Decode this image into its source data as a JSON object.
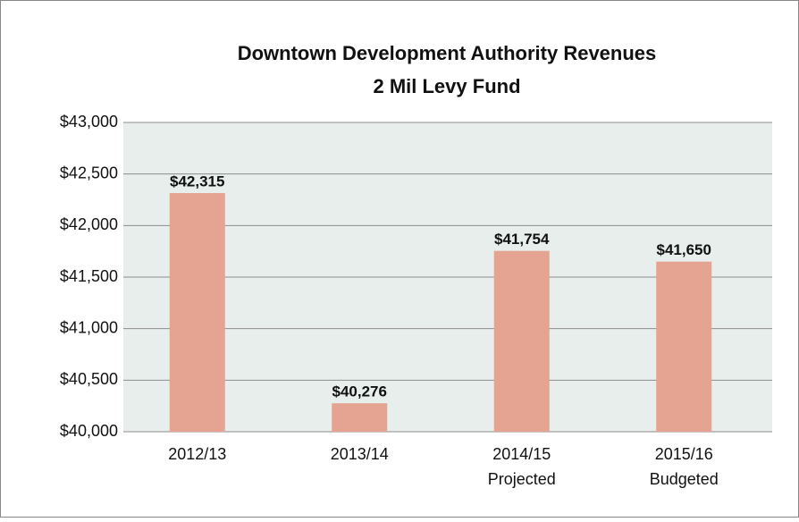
{
  "chart_data": {
    "type": "bar",
    "title": "Downtown Development Authority Revenues",
    "subtitle": "2 Mil Levy Fund",
    "categories": [
      [
        "2012/13"
      ],
      [
        "2013/14"
      ],
      [
        "2014/15",
        "Projected"
      ],
      [
        "2015/16",
        "Budgeted"
      ]
    ],
    "values": [
      42315,
      40276,
      41754,
      41650
    ],
    "value_labels": [
      "$42,315",
      "$40,276",
      "$41,754",
      "$41,650"
    ],
    "color": "#e4a491",
    "ylim": [
      40000,
      43000
    ],
    "yticks": [
      {
        "value": 40000,
        "label": "$40,000"
      },
      {
        "value": 40500,
        "label": "$40,500"
      },
      {
        "value": 41000,
        "label": "$41,000"
      },
      {
        "value": 41500,
        "label": "$41,500"
      },
      {
        "value": 42000,
        "label": "$42,000"
      },
      {
        "value": 42500,
        "label": "$42,500"
      },
      {
        "value": 43000,
        "label": "$43,000"
      }
    ],
    "grid": true
  }
}
